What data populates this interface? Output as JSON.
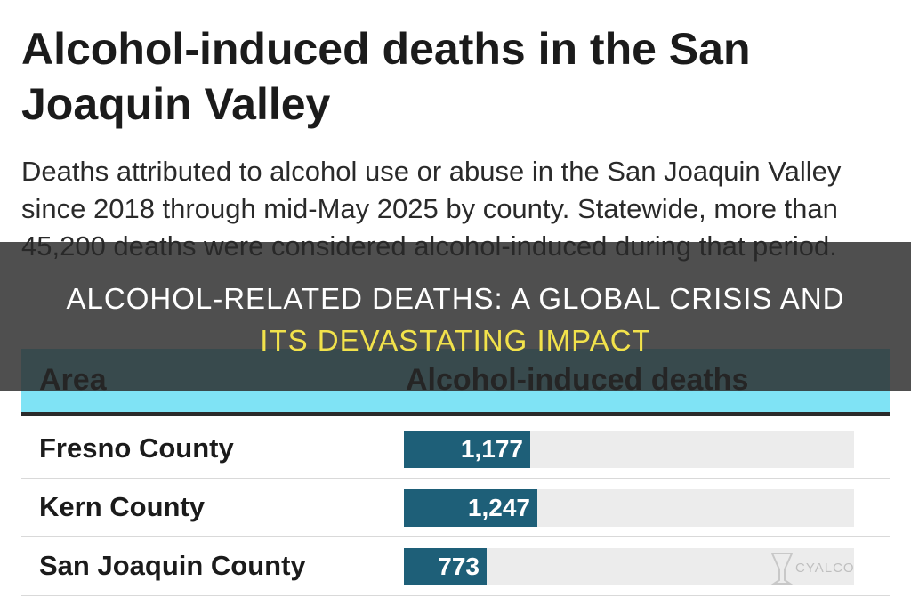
{
  "chart_data": {
    "type": "bar",
    "title": "Alcohol-induced deaths in the San Joaquin Valley",
    "subtitle": "Deaths attributed to alcohol use or abuse in the San Joaquin Valley since 2018 through mid-May 2025 by county. Statewide, more than 45,200 deaths were considered alcohol-induced during that period.",
    "columns": {
      "area": "Area",
      "value": "Alcohol-induced deaths"
    },
    "categories": [
      "Fresno County",
      "Kern County",
      "San Joaquin County"
    ],
    "values": [
      1177,
      1247,
      773
    ],
    "value_labels": [
      "1,177",
      "1,247",
      "773"
    ],
    "xlim": [
      0,
      4200
    ],
    "bar_color": "#1e5f78",
    "header_color": "#7fe3f5"
  },
  "overlay": {
    "line1": "ALCOHOL-RELATED DEATHS: A GLOBAL CRISIS AND",
    "line2": "ITS DEVASTATING IMPACT"
  },
  "watermark": {
    "text": "CYALCO"
  }
}
